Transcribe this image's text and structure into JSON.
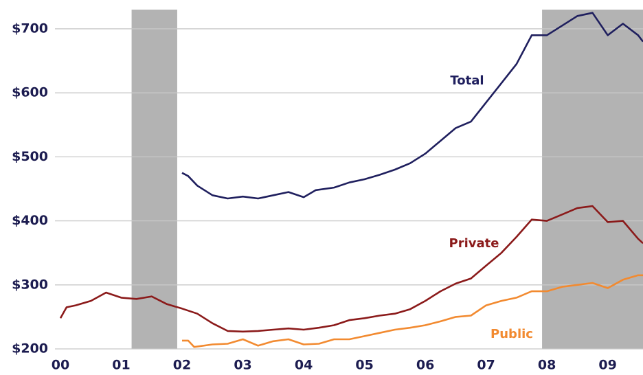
{
  "chart_data": {
    "type": "line",
    "xlim": [
      2000,
      2009.58
    ],
    "ylim": [
      200,
      730
    ],
    "xticks": [
      {
        "value": 2000,
        "label": "00"
      },
      {
        "value": 2001,
        "label": "01"
      },
      {
        "value": 2002,
        "label": "02"
      },
      {
        "value": 2003,
        "label": "03"
      },
      {
        "value": 2004,
        "label": "04"
      },
      {
        "value": 2005,
        "label": "05"
      },
      {
        "value": 2006,
        "label": "06"
      },
      {
        "value": 2007,
        "label": "07"
      },
      {
        "value": 2008,
        "label": "08"
      },
      {
        "value": 2009,
        "label": "09"
      }
    ],
    "yticks": [
      {
        "value": 200,
        "label": "$200"
      },
      {
        "value": 300,
        "label": "$300"
      },
      {
        "value": 400,
        "label": "$400"
      },
      {
        "value": 500,
        "label": "$500"
      },
      {
        "value": 600,
        "label": "$600"
      },
      {
        "value": 700,
        "label": "$700"
      }
    ],
    "grid": true,
    "shaded_regions": [
      [
        2001.17,
        2001.92
      ],
      [
        2007.92,
        2009.58
      ]
    ],
    "shade_color": "#b3b3b3",
    "series": [
      {
        "name": "Total",
        "color": "#1f1f5e",
        "x": [
          2002.0,
          2002.1,
          2002.25,
          2002.5,
          2002.75,
          2003.0,
          2003.25,
          2003.5,
          2003.75,
          2004.0,
          2004.2,
          2004.5,
          2004.75,
          2005.0,
          2005.25,
          2005.5,
          2005.75,
          2006.0,
          2006.25,
          2006.5,
          2006.75,
          2007.0,
          2007.25,
          2007.5,
          2007.75,
          2008.0,
          2008.25,
          2008.5,
          2008.75,
          2009.0,
          2009.25,
          2009.5,
          2009.58
        ],
        "values": [
          475,
          470,
          455,
          440,
          435,
          438,
          435,
          440,
          445,
          437,
          448,
          452,
          460,
          465,
          472,
          480,
          490,
          505,
          525,
          545,
          555,
          585,
          615,
          645,
          690,
          690,
          705,
          720,
          725,
          690,
          708,
          690,
          680
        ]
      },
      {
        "name": "Private",
        "color": "#8b1a1a",
        "x": [
          2000.0,
          2000.1,
          2000.25,
          2000.5,
          2000.75,
          2001.0,
          2001.25,
          2001.5,
          2001.75,
          2002.0,
          2002.25,
          2002.5,
          2002.75,
          2003.0,
          2003.25,
          2003.5,
          2003.75,
          2004.0,
          2004.25,
          2004.5,
          2004.75,
          2005.0,
          2005.25,
          2005.5,
          2005.75,
          2006.0,
          2006.25,
          2006.5,
          2006.75,
          2007.0,
          2007.25,
          2007.5,
          2007.75,
          2008.0,
          2008.25,
          2008.5,
          2008.75,
          2009.0,
          2009.25,
          2009.5,
          2009.58
        ],
        "values": [
          248,
          265,
          268,
          275,
          288,
          280,
          278,
          282,
          270,
          263,
          255,
          240,
          228,
          227,
          228,
          230,
          232,
          230,
          233,
          237,
          245,
          248,
          252,
          255,
          262,
          275,
          290,
          302,
          310,
          330,
          350,
          375,
          402,
          400,
          410,
          420,
          423,
          398,
          400,
          372,
          365
        ]
      },
      {
        "name": "Public",
        "color": "#f28a30",
        "x": [
          2002.0,
          2002.1,
          2002.2,
          2002.5,
          2002.75,
          2003.0,
          2003.25,
          2003.5,
          2003.75,
          2004.0,
          2004.25,
          2004.5,
          2004.75,
          2005.0,
          2005.25,
          2005.5,
          2005.75,
          2006.0,
          2006.25,
          2006.5,
          2006.75,
          2007.0,
          2007.25,
          2007.5,
          2007.75,
          2008.0,
          2008.25,
          2008.5,
          2008.75,
          2009.0,
          2009.25,
          2009.5,
          2009.58
        ],
        "values": [
          213,
          213,
          203,
          207,
          208,
          215,
          205,
          212,
          215,
          207,
          208,
          215,
          215,
          220,
          225,
          230,
          233,
          237,
          243,
          250,
          252,
          268,
          275,
          280,
          290,
          290,
          297,
          300,
          303,
          295,
          308,
          315,
          315
        ]
      }
    ]
  }
}
